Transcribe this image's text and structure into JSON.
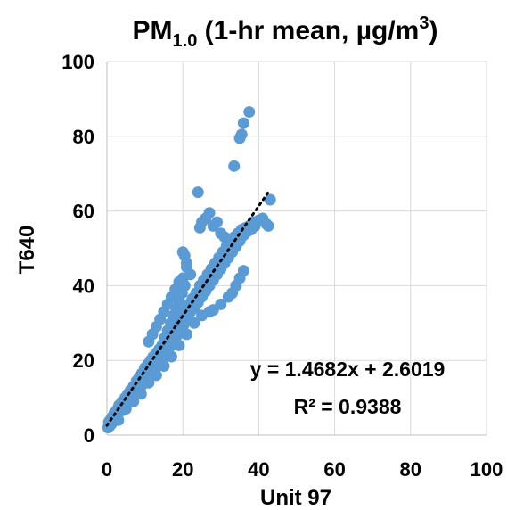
{
  "chart_data": {
    "type": "scatter",
    "title_main": "PM",
    "title_sub": "1.0",
    "title_rest": " (1-hr mean, µg/m",
    "title_sup": "3",
    "title_end": ")",
    "xlabel": "Unit 97",
    "ylabel": "T640",
    "xlim": [
      0,
      100
    ],
    "ylim": [
      0,
      100
    ],
    "xticks": [
      "0",
      "20",
      "40",
      "60",
      "80",
      "100"
    ],
    "yticks": [
      "0",
      "20",
      "40",
      "60",
      "80",
      "100"
    ],
    "grid": true,
    "marker_color": "#5b9bd5",
    "trendline": {
      "type": "linear",
      "slope": 1.4682,
      "intercept": 2.6019,
      "x_range": [
        0,
        43
      ],
      "style": "dotted",
      "color": "#000000",
      "equation": "y = 1.4682x + 2.6019",
      "r2_label": "R² = 0.9388"
    },
    "points": [
      [
        0.3,
        2.0
      ],
      [
        0.5,
        3.5
      ],
      [
        0.8,
        2.5
      ],
      [
        1.0,
        4.2
      ],
      [
        1.2,
        3.0
      ],
      [
        1.5,
        5.0
      ],
      [
        1.8,
        4.0
      ],
      [
        2.0,
        6.0
      ],
      [
        2.2,
        5.2
      ],
      [
        2.5,
        4.5
      ],
      [
        2.8,
        7.0
      ],
      [
        3.0,
        6.0
      ],
      [
        3.2,
        8.0
      ],
      [
        3.5,
        7.2
      ],
      [
        3.8,
        6.5
      ],
      [
        4.0,
        9.0
      ],
      [
        4.2,
        8.0
      ],
      [
        4.5,
        7.5
      ],
      [
        4.8,
        10.0
      ],
      [
        5.0,
        9.0
      ],
      [
        5.2,
        8.2
      ],
      [
        5.5,
        11.0
      ],
      [
        5.8,
        10.0
      ],
      [
        6.0,
        9.2
      ],
      [
        6.2,
        12.0
      ],
      [
        6.5,
        11.0
      ],
      [
        6.8,
        10.2
      ],
      [
        7.0,
        13.0
      ],
      [
        7.2,
        12.0
      ],
      [
        7.5,
        11.2
      ],
      [
        7.8,
        14.5
      ],
      [
        8.0,
        13.0
      ],
      [
        8.2,
        12.0
      ],
      [
        8.5,
        15.5
      ],
      [
        8.8,
        14.0
      ],
      [
        9.0,
        13.0
      ],
      [
        9.2,
        16.5
      ],
      [
        9.5,
        15.0
      ],
      [
        9.8,
        14.0
      ],
      [
        10.0,
        18.0
      ],
      [
        10.2,
        16.0
      ],
      [
        10.5,
        15.0
      ],
      [
        10.8,
        19.0
      ],
      [
        11.0,
        17.0
      ],
      [
        11.2,
        16.0
      ],
      [
        11.5,
        20.0
      ],
      [
        11.8,
        18.0
      ],
      [
        12.0,
        17.0
      ],
      [
        12.2,
        21.0
      ],
      [
        12.5,
        19.0
      ],
      [
        12.8,
        18.0
      ],
      [
        13.0,
        22.0
      ],
      [
        13.2,
        20.0
      ],
      [
        13.5,
        19.0
      ],
      [
        13.8,
        23.0
      ],
      [
        14.0,
        21.0
      ],
      [
        14.2,
        20.0
      ],
      [
        14.5,
        24.0
      ],
      [
        14.8,
        22.0
      ],
      [
        15.0,
        21.0
      ],
      [
        15.2,
        26.0
      ],
      [
        15.5,
        23.0
      ],
      [
        15.8,
        22.0
      ],
      [
        16.0,
        28.0
      ],
      [
        16.2,
        25.0
      ],
      [
        16.5,
        23.5
      ],
      [
        16.8,
        30.0
      ],
      [
        17.0,
        26.0
      ],
      [
        17.2,
        24.5
      ],
      [
        17.5,
        32.0
      ],
      [
        17.8,
        27.5
      ],
      [
        18.0,
        25.5
      ],
      [
        18.2,
        34.0
      ],
      [
        18.5,
        29.0
      ],
      [
        18.8,
        27.0
      ],
      [
        19.0,
        36.0
      ],
      [
        19.2,
        30.0
      ],
      [
        19.5,
        28.0
      ],
      [
        19.8,
        38.0
      ],
      [
        20.0,
        32.0
      ],
      [
        20.2,
        29.5
      ],
      [
        20.5,
        40.0
      ],
      [
        20.8,
        33.5
      ],
      [
        21.0,
        31.0
      ],
      [
        21.5,
        35.0
      ],
      [
        22.0,
        33.0
      ],
      [
        22.5,
        36.5
      ],
      [
        23.0,
        34.0
      ],
      [
        23.5,
        38.0
      ],
      [
        24.0,
        35.5
      ],
      [
        24.5,
        40.0
      ],
      [
        25.0,
        37.0
      ],
      [
        25.5,
        41.5
      ],
      [
        26.0,
        38.5
      ],
      [
        26.5,
        43.0
      ],
      [
        27.0,
        40.0
      ],
      [
        27.5,
        44.5
      ],
      [
        28.0,
        41.5
      ],
      [
        28.5,
        46.0
      ],
      [
        29.0,
        43.0
      ],
      [
        29.5,
        47.5
      ],
      [
        30.0,
        44.5
      ],
      [
        30.5,
        49.0
      ],
      [
        31.0,
        46.0
      ],
      [
        31.5,
        50.5
      ],
      [
        32.0,
        47.5
      ],
      [
        32.5,
        52.0
      ],
      [
        33.0,
        49.0
      ],
      [
        33.5,
        53.0
      ],
      [
        34.0,
        50.5
      ],
      [
        34.5,
        54.0
      ],
      [
        35.0,
        52.0
      ],
      [
        35.5,
        55.0
      ],
      [
        36.0,
        53.5
      ],
      [
        36.5,
        55.5
      ],
      [
        37.0,
        54.5
      ],
      [
        37.5,
        56.0
      ],
      [
        38.0,
        55.0
      ],
      [
        38.5,
        57.0
      ],
      [
        39.0,
        56.0
      ],
      [
        40.0,
        57.5
      ],
      [
        41.0,
        58.0
      ],
      [
        42.0,
        56.5
      ],
      [
        42.5,
        56.0
      ],
      [
        43.0,
        63.0
      ],
      [
        3.0,
        4.0
      ],
      [
        5.0,
        7.0
      ],
      [
        7.0,
        9.0
      ],
      [
        9.0,
        11.0
      ],
      [
        11.0,
        14.0
      ],
      [
        13.0,
        16.0
      ],
      [
        15.0,
        18.5
      ],
      [
        17.0,
        21.0
      ],
      [
        19.0,
        24.0
      ],
      [
        21.0,
        27.0
      ],
      [
        23.0,
        30.0
      ],
      [
        25.0,
        32.0
      ],
      [
        27.0,
        33.0
      ],
      [
        28.0,
        33.5
      ],
      [
        30.0,
        35.0
      ],
      [
        32.0,
        37.0
      ],
      [
        33.0,
        38.0
      ],
      [
        34.0,
        40.0
      ],
      [
        35.0,
        42.0
      ],
      [
        36.0,
        44.0
      ],
      [
        11.0,
        25.0
      ],
      [
        12.0,
        27.0
      ],
      [
        13.0,
        29.0
      ],
      [
        14.0,
        31.0
      ],
      [
        15.0,
        33.0
      ],
      [
        16.0,
        35.0
      ],
      [
        17.0,
        37.0
      ],
      [
        18.0,
        39.0
      ],
      [
        19.0,
        41.0
      ],
      [
        20.0,
        42.0
      ],
      [
        21.0,
        45.0
      ],
      [
        22.0,
        43.0
      ],
      [
        20.0,
        49.0
      ],
      [
        20.5,
        48.0
      ],
      [
        21.0,
        46.0
      ],
      [
        24.5,
        55.5
      ],
      [
        25.0,
        57.0
      ],
      [
        26.0,
        58.0
      ],
      [
        27.0,
        59.5
      ],
      [
        28.0,
        56.0
      ],
      [
        29.0,
        57.0
      ],
      [
        30.0,
        54.0
      ],
      [
        31.0,
        53.0
      ],
      [
        24.0,
        65.0
      ],
      [
        33.5,
        72.0
      ],
      [
        35.0,
        79.5
      ],
      [
        35.5,
        80.5
      ],
      [
        36.0,
        83.5
      ],
      [
        37.5,
        86.5
      ]
    ]
  }
}
